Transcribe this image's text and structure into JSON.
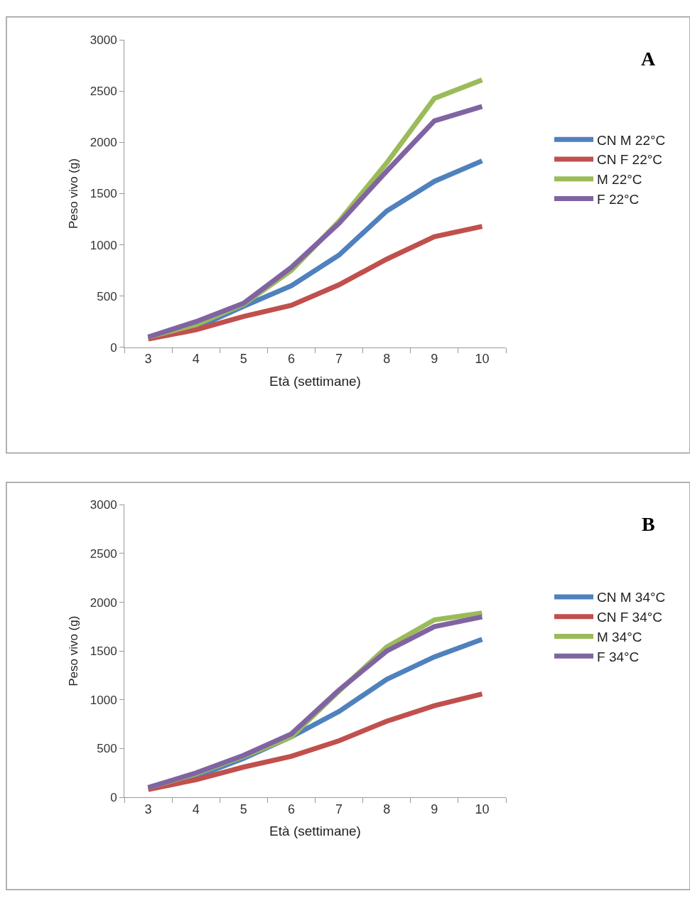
{
  "chart_data": [
    {
      "type": "line",
      "xlabel": "Età (settimane)",
      "ylabel": "Peso vivo (g)",
      "annotations": [
        "A"
      ],
      "categories": [
        "3",
        "4",
        "5",
        "6",
        "7",
        "8",
        "9",
        "10"
      ],
      "ylim": [
        0,
        3000
      ],
      "yticks": [
        0,
        500,
        1000,
        1500,
        2000,
        2500,
        3000
      ],
      "grid": false,
      "legend": "right",
      "marker": "none",
      "line_style": "solid",
      "series": [
        {
          "name": "CN M 22°C",
          "color": "#4f81bd",
          "values": [
            90,
            190,
            400,
            600,
            900,
            1330,
            1620,
            1820
          ]
        },
        {
          "name": "CN F 22°C",
          "color": "#c0504d",
          "values": [
            80,
            170,
            300,
            410,
            610,
            860,
            1080,
            1180
          ]
        },
        {
          "name": "M 22°C",
          "color": "#9bbb59",
          "values": [
            100,
            220,
            420,
            750,
            1230,
            1800,
            2430,
            2610
          ]
        },
        {
          "name": "F 22°C",
          "color": "#8064a2",
          "values": [
            100,
            250,
            430,
            780,
            1210,
            1720,
            2210,
            2350
          ]
        }
      ]
    },
    {
      "type": "line",
      "xlabel": "Età (settimane)",
      "ylabel": "Peso vivo (g)",
      "annotations": [
        "B"
      ],
      "categories": [
        "3",
        "4",
        "5",
        "6",
        "7",
        "8",
        "9",
        "10"
      ],
      "ylim": [
        0,
        3000
      ],
      "yticks": [
        0,
        500,
        1000,
        1500,
        2000,
        2500,
        3000
      ],
      "grid": false,
      "legend": "right",
      "marker": "none",
      "line_style": "solid",
      "series": [
        {
          "name": "CN M 34°C",
          "color": "#4f81bd",
          "values": [
            90,
            210,
            400,
            620,
            880,
            1210,
            1440,
            1620
          ]
        },
        {
          "name": "CN F 34°C",
          "color": "#c0504d",
          "values": [
            80,
            180,
            310,
            420,
            580,
            780,
            940,
            1060
          ]
        },
        {
          "name": "M 34°C",
          "color": "#9bbb59",
          "values": [
            100,
            240,
            420,
            620,
            1090,
            1540,
            1820,
            1890
          ]
        },
        {
          "name": "F 34°C",
          "color": "#8064a2",
          "values": [
            100,
            250,
            430,
            650,
            1100,
            1500,
            1750,
            1850
          ]
        }
      ]
    }
  ]
}
